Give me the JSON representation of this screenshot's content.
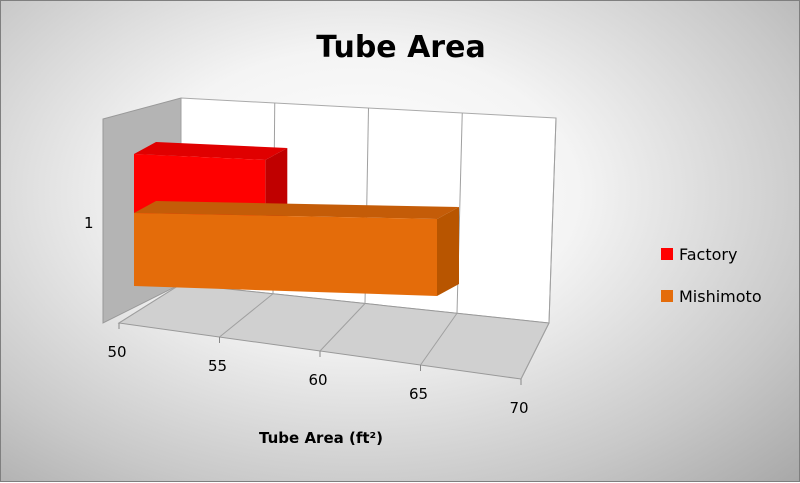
{
  "chart_data": {
    "type": "bar",
    "orientation": "horizontal",
    "style": "3d",
    "title": "Tube Area",
    "xlabel": "Tube Area (ft²)",
    "ylabel": "",
    "categories": [
      "1"
    ],
    "xlim": [
      50,
      70
    ],
    "xticks": [
      "50",
      "55",
      "60",
      "65",
      "70"
    ],
    "grid": true,
    "legend_position": "right",
    "series": [
      {
        "name": "Factory",
        "values": [
          56.5
        ],
        "color": "#ff0000"
      },
      {
        "name": "Mishimoto",
        "values": [
          65
        ],
        "color": "#e46c0a"
      }
    ]
  }
}
